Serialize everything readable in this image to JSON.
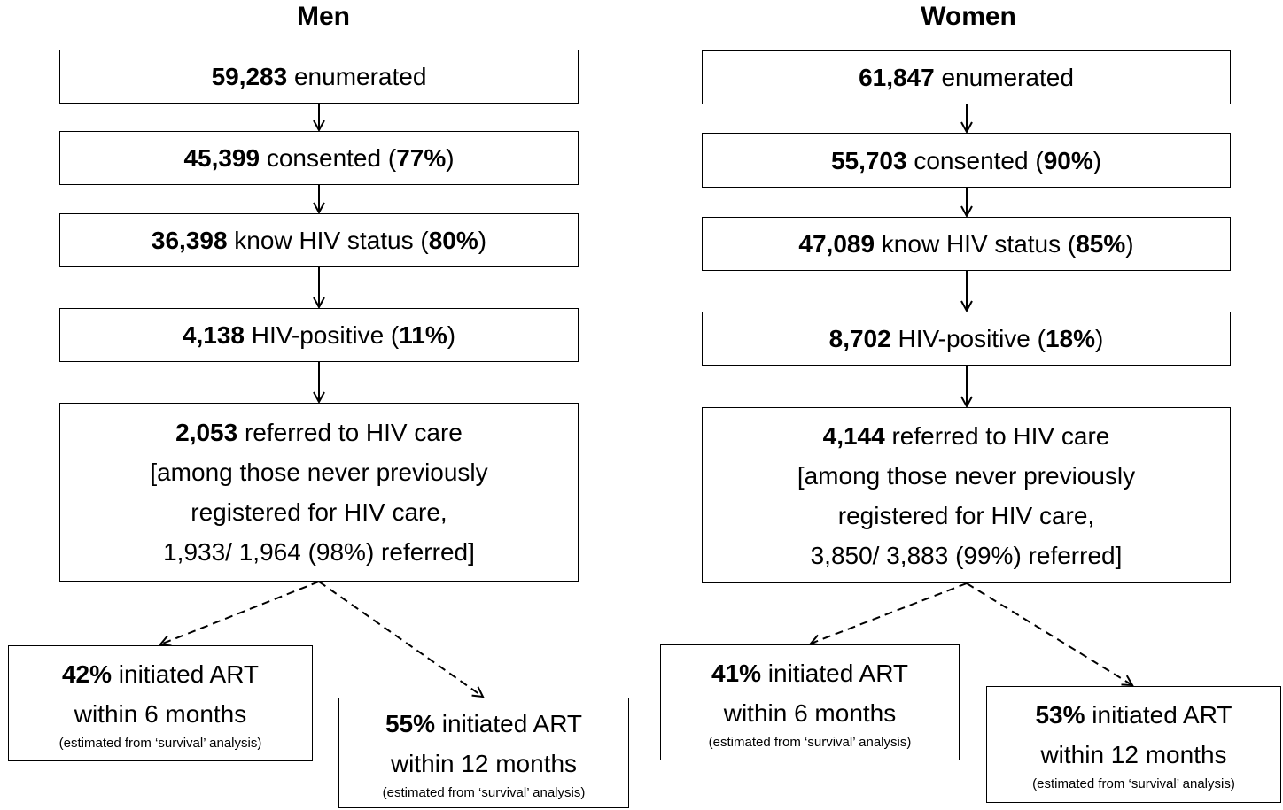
{
  "columns": [
    {
      "title": "Men",
      "boxes": [
        {
          "lines": [
            [
              {
                "text": "59,283",
                "bold": true
              },
              {
                "text": " enumerated"
              }
            ]
          ]
        },
        {
          "lines": [
            [
              {
                "text": "45,399",
                "bold": true
              },
              {
                "text": " consented ("
              },
              {
                "text": "77%",
                "bold": true
              },
              {
                "text": ")"
              }
            ]
          ]
        },
        {
          "lines": [
            [
              {
                "text": "36,398",
                "bold": true
              },
              {
                "text": " know HIV status ("
              },
              {
                "text": "80%",
                "bold": true
              },
              {
                "text": ")"
              }
            ]
          ]
        },
        {
          "lines": [
            [
              {
                "text": "4,138",
                "bold": true
              },
              {
                "text": " HIV-positive ("
              },
              {
                "text": "11%",
                "bold": true
              },
              {
                "text": ")"
              }
            ]
          ]
        },
        {
          "lines": [
            [
              {
                "text": "2,053",
                "bold": true
              },
              {
                "text": " referred to HIV care"
              }
            ],
            [
              {
                "text": "[among those never previously"
              }
            ],
            [
              {
                "text": "registered for HIV care,"
              }
            ],
            [
              {
                "text": "1,933/ 1,964 (98%) referred]"
              }
            ]
          ]
        }
      ],
      "outcomes": [
        {
          "lines": [
            [
              {
                "text": "42%",
                "bold": true
              },
              {
                "text": " initiated ART"
              }
            ],
            [
              {
                "text": "within 6 months"
              }
            ]
          ],
          "note": "(estimated from ‘survival’ analysis)"
        },
        {
          "lines": [
            [
              {
                "text": "55%",
                "bold": true
              },
              {
                "text": " initiated ART"
              }
            ],
            [
              {
                "text": "within 12 months"
              }
            ]
          ],
          "note": "(estimated from ‘survival’ analysis)"
        }
      ]
    },
    {
      "title": "Women",
      "boxes": [
        {
          "lines": [
            [
              {
                "text": "61,847",
                "bold": true
              },
              {
                "text": " enumerated"
              }
            ]
          ]
        },
        {
          "lines": [
            [
              {
                "text": "55,703",
                "bold": true
              },
              {
                "text": " consented ("
              },
              {
                "text": "90%",
                "bold": true
              },
              {
                "text": ")"
              }
            ]
          ]
        },
        {
          "lines": [
            [
              {
                "text": "47,089",
                "bold": true
              },
              {
                "text": " know HIV status ("
              },
              {
                "text": "85%",
                "bold": true
              },
              {
                "text": ")"
              }
            ]
          ]
        },
        {
          "lines": [
            [
              {
                "text": "8,702",
                "bold": true
              },
              {
                "text": " HIV-positive ("
              },
              {
                "text": "18%",
                "bold": true
              },
              {
                "text": ")"
              }
            ]
          ]
        },
        {
          "lines": [
            [
              {
                "text": "4,144",
                "bold": true
              },
              {
                "text": " referred to HIV care"
              }
            ],
            [
              {
                "text": "[among those never previously"
              }
            ],
            [
              {
                "text": "registered for HIV care,"
              }
            ],
            [
              {
                "text": "3,850/ 3,883 (99%) referred]"
              }
            ]
          ]
        }
      ],
      "outcomes": [
        {
          "lines": [
            [
              {
                "text": "41%",
                "bold": true
              },
              {
                "text": " initiated ART"
              }
            ],
            [
              {
                "text": "within 6 months"
              }
            ]
          ],
          "note": "(estimated from ‘survival’ analysis)"
        },
        {
          "lines": [
            [
              {
                "text": "53%",
                "bold": true
              },
              {
                "text": " initiated ART"
              }
            ],
            [
              {
                "text": "within 12 months"
              }
            ]
          ],
          "note": "(estimated from ‘survival’ analysis)"
        }
      ]
    }
  ]
}
